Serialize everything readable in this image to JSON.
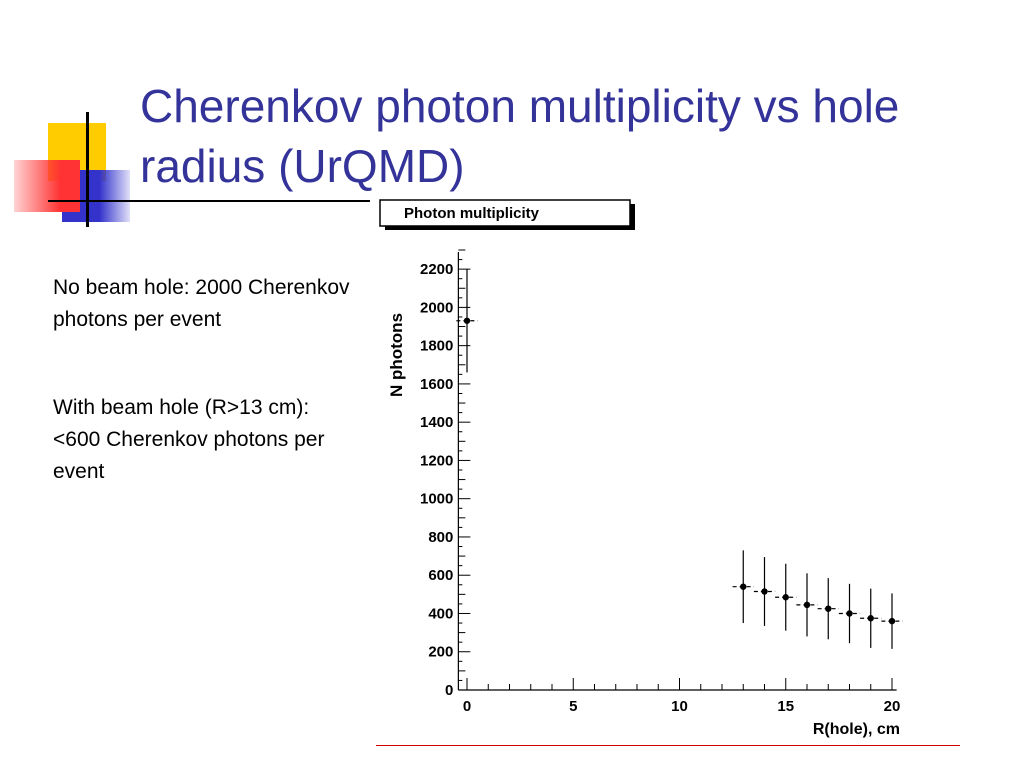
{
  "slide": {
    "title": "Cherenkov photon multiplicity vs hole radius (UrQMD)",
    "bullets": [
      "No beam hole: 2000 Cherenkov photons per event",
      "With beam hole (R>13 cm): <600 Cherenkov photons per event"
    ]
  },
  "theme": {
    "title_color": "#333399",
    "deco_yellow": "#ffcc00",
    "deco_red": "#ff3333",
    "deco_blue": "#3333cc",
    "rule_color": "#cc0000"
  },
  "chart_data": {
    "type": "scatter",
    "title": "Photon multiplicity",
    "xlabel": "R(hole), cm",
    "ylabel": "N photons",
    "xlim": [
      -0.5,
      20.5
    ],
    "ylim": [
      0,
      2300
    ],
    "x_ticks": [
      0,
      5,
      10,
      15,
      20
    ],
    "y_ticks": [
      0,
      200,
      400,
      600,
      800,
      1000,
      1200,
      1400,
      1600,
      1800,
      2000,
      2200
    ],
    "grid": false,
    "series": [
      {
        "points": [
          {
            "x": 0,
            "y": 1930,
            "yerr": 270,
            "xerr": 0.5
          },
          {
            "x": 13,
            "y": 540,
            "yerr": 190,
            "xerr": 0.5
          },
          {
            "x": 14,
            "y": 515,
            "yerr": 180,
            "xerr": 0.5
          },
          {
            "x": 15,
            "y": 485,
            "yerr": 175,
            "xerr": 0.5
          },
          {
            "x": 16,
            "y": 445,
            "yerr": 165,
            "xerr": 0.5
          },
          {
            "x": 17,
            "y": 425,
            "yerr": 160,
            "xerr": 0.5
          },
          {
            "x": 18,
            "y": 400,
            "yerr": 155,
            "xerr": 0.5
          },
          {
            "x": 19,
            "y": 375,
            "yerr": 155,
            "xerr": 0.5
          },
          {
            "x": 20,
            "y": 360,
            "yerr": 145,
            "xerr": 0.5
          }
        ]
      }
    ]
  }
}
